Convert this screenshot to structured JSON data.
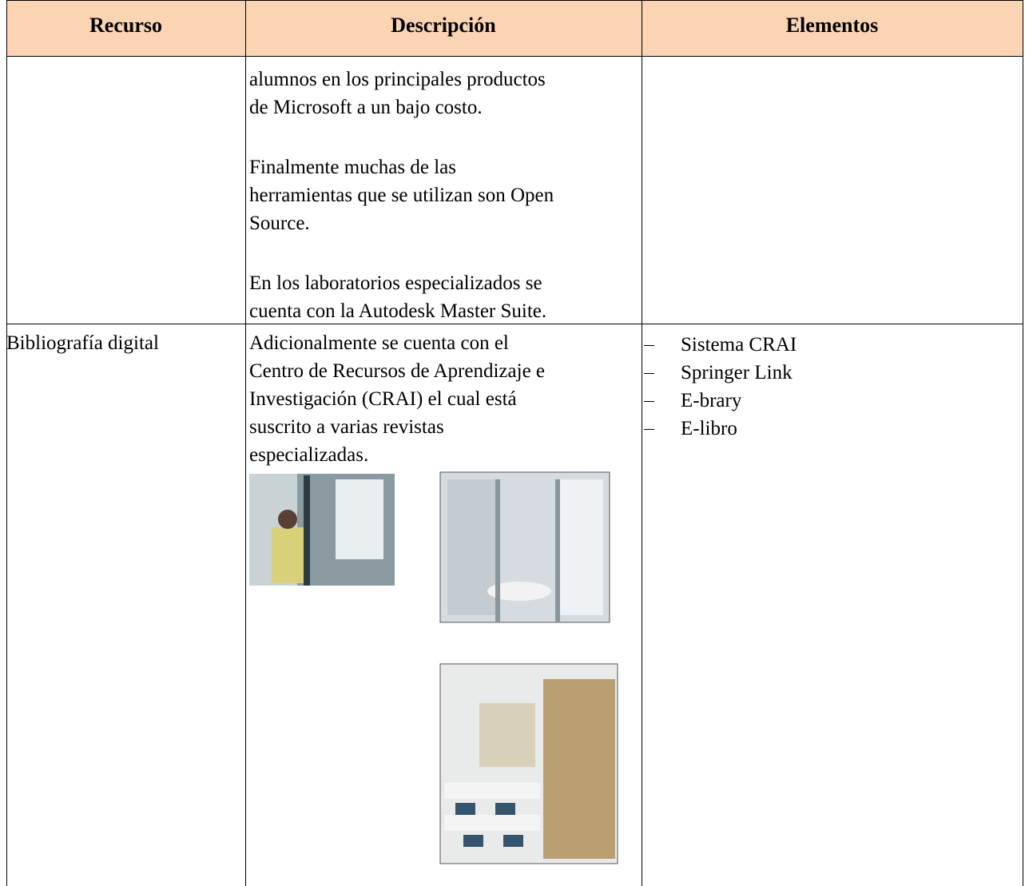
{
  "table": {
    "header": [
      "Recurso",
      "Descripción",
      "Elementos"
    ],
    "rows": [
      {
        "description": [
          [
            "alumnos en los principales productos",
            "de Microsoft a un bajo costo."
          ],
          [
            "Finalmente muchas de las",
            "herramientas que se utilizan son Open",
            "Source."
          ],
          [
            "En los laboratorios especializados se",
            "cuenta con la Autodesk Master Suite."
          ]
        ]
      },
      {
        "resource": "Bibliografía digital",
        "description": [
          [
            "Adicionalmente se cuenta con el",
            "Centro de Recursos de Aprendizaje e",
            "Investigación (CRAI) el cual está",
            "suscrito a varias revistas",
            "especializadas."
          ]
        ],
        "elements": [
          "Sistema CRAI",
          "Springer Link",
          "E-brary",
          "E-libro"
        ]
      }
    ]
  }
}
